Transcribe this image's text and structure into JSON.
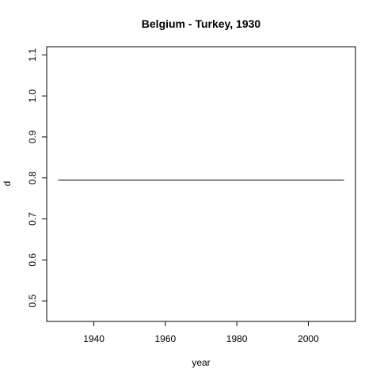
{
  "chart_data": {
    "type": "line",
    "title": "Belgium - Turkey, 1930",
    "xlabel": "year",
    "ylabel": "d",
    "x_ticks": [
      1940,
      1960,
      1980,
      2000
    ],
    "y_ticks": [
      0.5,
      0.6,
      0.7,
      0.8,
      0.9,
      1.0,
      1.1
    ],
    "y_tick_labels": [
      "0.5",
      "0.6",
      "0.7",
      "0.8",
      "0.9",
      "1.0",
      "1.1"
    ],
    "xlim": [
      1926.8,
      2013.2
    ],
    "ylim": [
      0.45,
      1.12
    ],
    "grid": false,
    "legend": "none",
    "series": [
      {
        "x": [
          1930,
          2010
        ],
        "y": [
          0.795,
          0.795
        ],
        "color": "#000000"
      }
    ]
  }
}
